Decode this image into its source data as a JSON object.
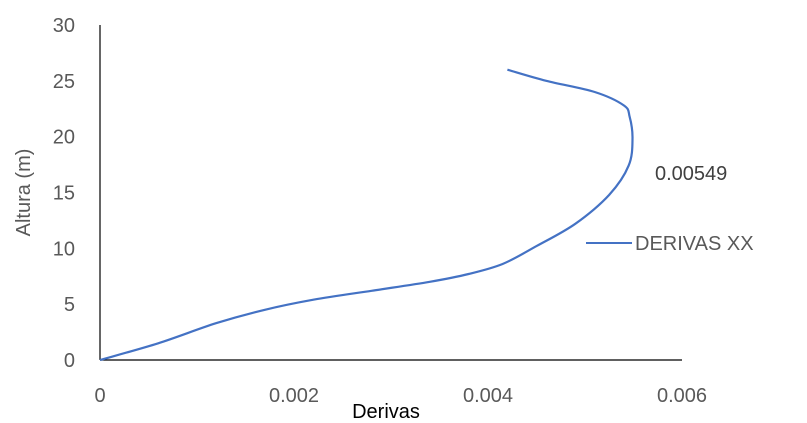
{
  "chart_data": {
    "type": "line",
    "title": "",
    "xlabel": "Derivas",
    "ylabel": "Altura (m)",
    "xlim": [
      0,
      0.006
    ],
    "ylim": [
      0,
      30
    ],
    "x_ticks": [
      "0",
      "0.002",
      "0.004",
      "0.006"
    ],
    "y_ticks": [
      "0",
      "5",
      "10",
      "15",
      "20",
      "25",
      "30"
    ],
    "grid": false,
    "legend_position": "right",
    "annotation": "0.00549",
    "series": [
      {
        "name": "DERIVAS XX",
        "color": "#4472C4",
        "points": [
          {
            "x": 0.0,
            "y": 0.0
          },
          {
            "x": 0.0006,
            "y": 1.5
          },
          {
            "x": 0.0012,
            "y": 3.3
          },
          {
            "x": 0.0017,
            "y": 4.5
          },
          {
            "x": 0.0022,
            "y": 5.4
          },
          {
            "x": 0.0028,
            "y": 6.2
          },
          {
            "x": 0.0034,
            "y": 7.0
          },
          {
            "x": 0.0038,
            "y": 7.7
          },
          {
            "x": 0.00415,
            "y": 8.6
          },
          {
            "x": 0.0045,
            "y": 10.2
          },
          {
            "x": 0.0049,
            "y": 12.2
          },
          {
            "x": 0.00525,
            "y": 14.8
          },
          {
            "x": 0.00545,
            "y": 17.4
          },
          {
            "x": 0.00549,
            "y": 19.8
          },
          {
            "x": 0.00546,
            "y": 21.8
          },
          {
            "x": 0.0054,
            "y": 22.8
          },
          {
            "x": 0.0051,
            "y": 24.0
          },
          {
            "x": 0.0046,
            "y": 25.0
          },
          {
            "x": 0.0042,
            "y": 26.0
          }
        ]
      }
    ]
  }
}
